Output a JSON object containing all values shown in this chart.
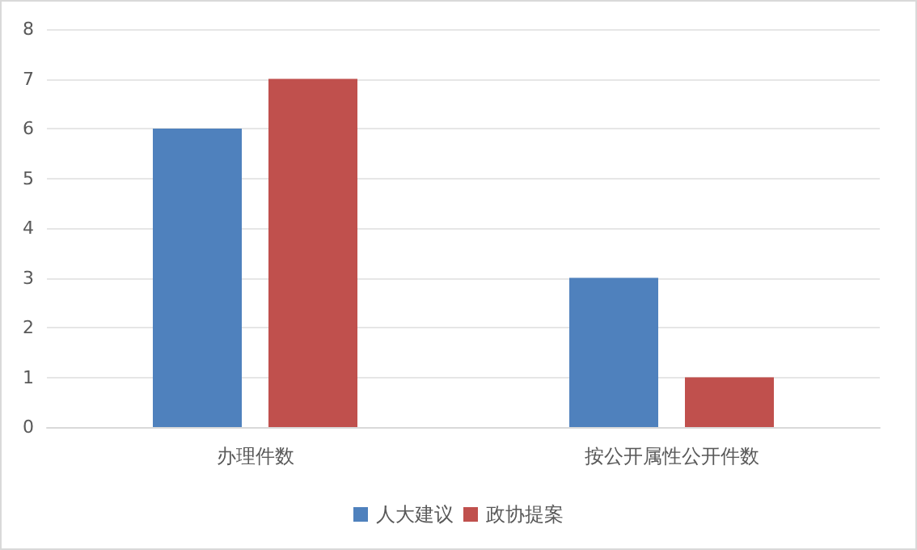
{
  "chart_data": {
    "type": "bar",
    "categories": [
      "办理件数",
      "按公开属性公开件数"
    ],
    "series": [
      {
        "name": "人大建议",
        "color": "#4f81bd",
        "values": [
          6,
          3
        ]
      },
      {
        "name": "政协提案",
        "color": "#c0504d",
        "values": [
          7,
          1
        ]
      }
    ],
    "ylim": [
      0,
      8
    ],
    "yticks": [
      0,
      1,
      2,
      3,
      4,
      5,
      6,
      7,
      8
    ],
    "grid": "y",
    "legend": "bottom"
  }
}
